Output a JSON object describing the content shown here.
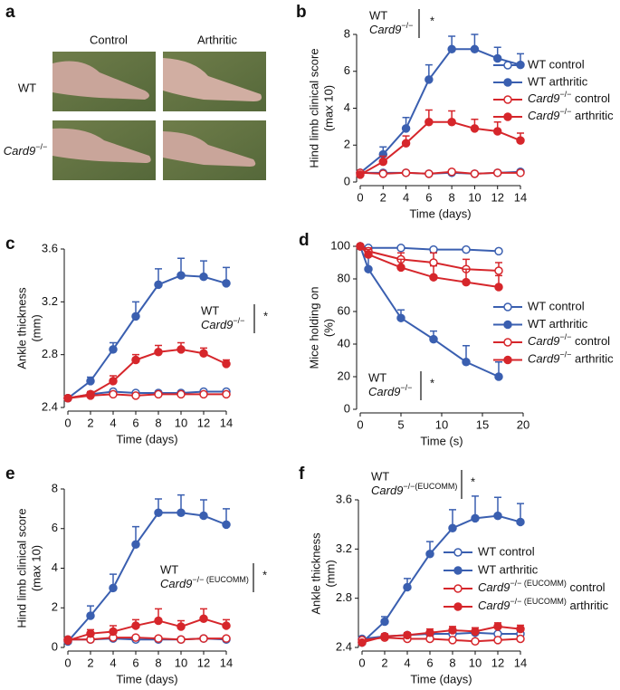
{
  "panel_a": {
    "label": "a",
    "columns": [
      "Control",
      "Arthritic"
    ],
    "rows": [
      "WT",
      "Card9−/−"
    ]
  },
  "chart_data": [
    {
      "type": "line",
      "panel": "b",
      "xlabel": "Time (days)",
      "ylabel": [
        "Hind limb clinical score",
        "(max 10)"
      ],
      "x": [
        0,
        2,
        4,
        6,
        8,
        10,
        12,
        14
      ],
      "xlim": [
        0,
        14
      ],
      "xticks": [
        0,
        2,
        4,
        6,
        8,
        10,
        12,
        14
      ],
      "ylim": [
        0,
        8
      ],
      "yticks": [
        0,
        2,
        4,
        6,
        8
      ],
      "annotations": {
        "lines": [
          "WT",
          "Card9−/−"
        ],
        "mark": "*"
      },
      "series": [
        {
          "name": "WT control",
          "color": "#3a5fb0",
          "filled": false,
          "values": [
            0.5,
            0.5,
            0.5,
            0.45,
            0.5,
            0.45,
            0.5,
            0.55
          ]
        },
        {
          "name": "WT arthritic",
          "color": "#3a5fb0",
          "filled": true,
          "values": [
            0.5,
            1.5,
            2.9,
            5.55,
            7.2,
            7.2,
            6.7,
            6.35
          ],
          "errors": [
            0.1,
            0.4,
            0.6,
            0.8,
            0.7,
            0.8,
            0.6,
            0.6
          ]
        },
        {
          "name": "Card9−/− control",
          "color": "#d6262b",
          "filled": false,
          "values": [
            0.5,
            0.45,
            0.5,
            0.45,
            0.55,
            0.45,
            0.5,
            0.5
          ]
        },
        {
          "name": "Card9−/− arthritic",
          "color": "#d6262b",
          "filled": true,
          "values": [
            0.4,
            1.1,
            2.1,
            3.25,
            3.25,
            2.9,
            2.75,
            2.25
          ],
          "errors": [
            0.1,
            0.3,
            0.4,
            0.65,
            0.6,
            0.5,
            0.5,
            0.4
          ]
        }
      ]
    },
    {
      "type": "line",
      "panel": "c",
      "xlabel": "Time (days)",
      "ylabel": [
        "Ankle thickness",
        "(mm)"
      ],
      "x": [
        0,
        2,
        4,
        6,
        8,
        10,
        12,
        14
      ],
      "xlim": [
        0,
        14
      ],
      "xticks": [
        0,
        2,
        4,
        6,
        8,
        10,
        12,
        14
      ],
      "ylim": [
        2.4,
        3.6
      ],
      "yticks": [
        2.4,
        2.8,
        3.2,
        3.6
      ],
      "annotations": {
        "lines": [
          "WT",
          "Card9−/−"
        ],
        "mark": "*"
      },
      "series": [
        {
          "color": "#3a5fb0",
          "filled": false,
          "values": [
            2.47,
            2.5,
            2.52,
            2.51,
            2.51,
            2.51,
            2.52,
            2.52
          ]
        },
        {
          "color": "#3a5fb0",
          "filled": true,
          "values": [
            2.47,
            2.6,
            2.84,
            3.09,
            3.33,
            3.4,
            3.39,
            3.34
          ],
          "errors": [
            0.02,
            0.03,
            0.05,
            0.11,
            0.12,
            0.13,
            0.12,
            0.12
          ]
        },
        {
          "color": "#d6262b",
          "filled": false,
          "values": [
            2.47,
            2.49,
            2.5,
            2.49,
            2.5,
            2.5,
            2.5,
            2.5
          ]
        },
        {
          "color": "#d6262b",
          "filled": true,
          "values": [
            2.47,
            2.5,
            2.6,
            2.76,
            2.82,
            2.84,
            2.81,
            2.73
          ],
          "errors": [
            0.02,
            0.02,
            0.04,
            0.04,
            0.05,
            0.05,
            0.04,
            0.03
          ]
        }
      ]
    },
    {
      "type": "line",
      "panel": "d",
      "xlabel": "Time (s)",
      "ylabel": [
        "Mice holding on",
        "(%)"
      ],
      "x": [
        0,
        1,
        5,
        9,
        13,
        17
      ],
      "xlim": [
        0,
        20
      ],
      "xticks": [
        0,
        5,
        10,
        15,
        20
      ],
      "ylim": [
        0,
        100
      ],
      "yticks": [
        0,
        20,
        40,
        60,
        80,
        100
      ],
      "annotations": {
        "lines": [
          "WT",
          "Card9−/−"
        ],
        "mark": "*"
      },
      "series": [
        {
          "name": "WT control",
          "color": "#3a5fb0",
          "filled": false,
          "values": [
            100,
            99,
            99,
            98,
            98,
            97
          ]
        },
        {
          "name": "WT arthritic",
          "color": "#3a5fb0",
          "filled": true,
          "values": [
            100,
            86,
            56,
            43,
            29,
            20
          ],
          "errors": [
            0,
            8,
            5,
            5,
            10,
            9
          ]
        },
        {
          "name": "Card9−/− control",
          "color": "#d6262b",
          "filled": false,
          "values": [
            100,
            97,
            92,
            90,
            86,
            85
          ],
          "errors": [
            0,
            2,
            4,
            6,
            6,
            5
          ]
        },
        {
          "name": "Card9−/− arthritic",
          "color": "#d6262b",
          "filled": true,
          "values": [
            100,
            95,
            87,
            81,
            78,
            75
          ],
          "errors": [
            0,
            3,
            5,
            7,
            8,
            7
          ]
        }
      ]
    },
    {
      "type": "line",
      "panel": "e",
      "xlabel": "Time (days)",
      "ylabel": [
        "Hind limb clinical score",
        "(max 10)"
      ],
      "x": [
        0,
        2,
        4,
        6,
        8,
        10,
        12,
        14
      ],
      "xlim": [
        0,
        14
      ],
      "xticks": [
        0,
        2,
        4,
        6,
        8,
        10,
        12,
        14
      ],
      "ylim": [
        0,
        8
      ],
      "yticks": [
        0,
        2,
        4,
        6,
        8
      ],
      "annotations": {
        "lines": [
          "WT",
          "Card9−/− (EUCOMM)"
        ],
        "mark": "*"
      },
      "series": [
        {
          "color": "#3a5fb0",
          "filled": false,
          "values": [
            0.4,
            0.4,
            0.45,
            0.4,
            0.4,
            0.4,
            0.45,
            0.4
          ]
        },
        {
          "color": "#3a5fb0",
          "filled": true,
          "values": [
            0.3,
            1.6,
            3.0,
            5.2,
            6.8,
            6.8,
            6.65,
            6.2
          ],
          "errors": [
            0.1,
            0.5,
            0.7,
            0.9,
            0.7,
            0.9,
            0.8,
            0.8
          ]
        },
        {
          "color": "#d6262b",
          "filled": false,
          "values": [
            0.4,
            0.4,
            0.5,
            0.5,
            0.45,
            0.4,
            0.45,
            0.45
          ]
        },
        {
          "color": "#d6262b",
          "filled": true,
          "values": [
            0.35,
            0.7,
            0.8,
            1.1,
            1.35,
            1.05,
            1.45,
            1.1
          ],
          "errors": [
            0.1,
            0.2,
            0.3,
            0.3,
            0.6,
            0.3,
            0.5,
            0.3
          ]
        }
      ]
    },
    {
      "type": "line",
      "panel": "f",
      "xlabel": "Time (days)",
      "ylabel": [
        "Ankle thickness",
        "(mm)"
      ],
      "x": [
        0,
        2,
        4,
        6,
        8,
        10,
        12,
        14
      ],
      "xlim": [
        0,
        14
      ],
      "xticks": [
        0,
        2,
        4,
        6,
        8,
        10,
        12,
        14
      ],
      "ylim": [
        2.4,
        3.6
      ],
      "yticks": [
        2.4,
        2.8,
        3.2,
        3.6
      ],
      "annotations": {
        "lines": [
          "WT",
          "Card9−/−(EUCOMM)"
        ],
        "mark": "*"
      },
      "series": [
        {
          "name": "WT control",
          "color": "#3a5fb0",
          "filled": false,
          "values": [
            2.47,
            2.49,
            2.5,
            2.51,
            2.51,
            2.52,
            2.51,
            2.51
          ]
        },
        {
          "name": "WT arthritic",
          "color": "#3a5fb0",
          "filled": true,
          "values": [
            2.44,
            2.61,
            2.89,
            3.16,
            3.37,
            3.45,
            3.47,
            3.42
          ],
          "errors": [
            0.02,
            0.04,
            0.07,
            0.1,
            0.15,
            0.18,
            0.15,
            0.15
          ]
        },
        {
          "name": "Card9−/− (EUCOMM) control",
          "color": "#d6262b",
          "filled": false,
          "values": [
            2.46,
            2.48,
            2.47,
            2.47,
            2.46,
            2.45,
            2.46,
            2.47
          ]
        },
        {
          "name": "Card9−/− (EUCOMM) arthritic",
          "color": "#d6262b",
          "filled": true,
          "values": [
            2.44,
            2.49,
            2.5,
            2.52,
            2.54,
            2.53,
            2.57,
            2.55
          ],
          "errors": [
            0.02,
            0.02,
            0.02,
            0.03,
            0.03,
            0.03,
            0.03,
            0.03
          ]
        }
      ]
    }
  ]
}
